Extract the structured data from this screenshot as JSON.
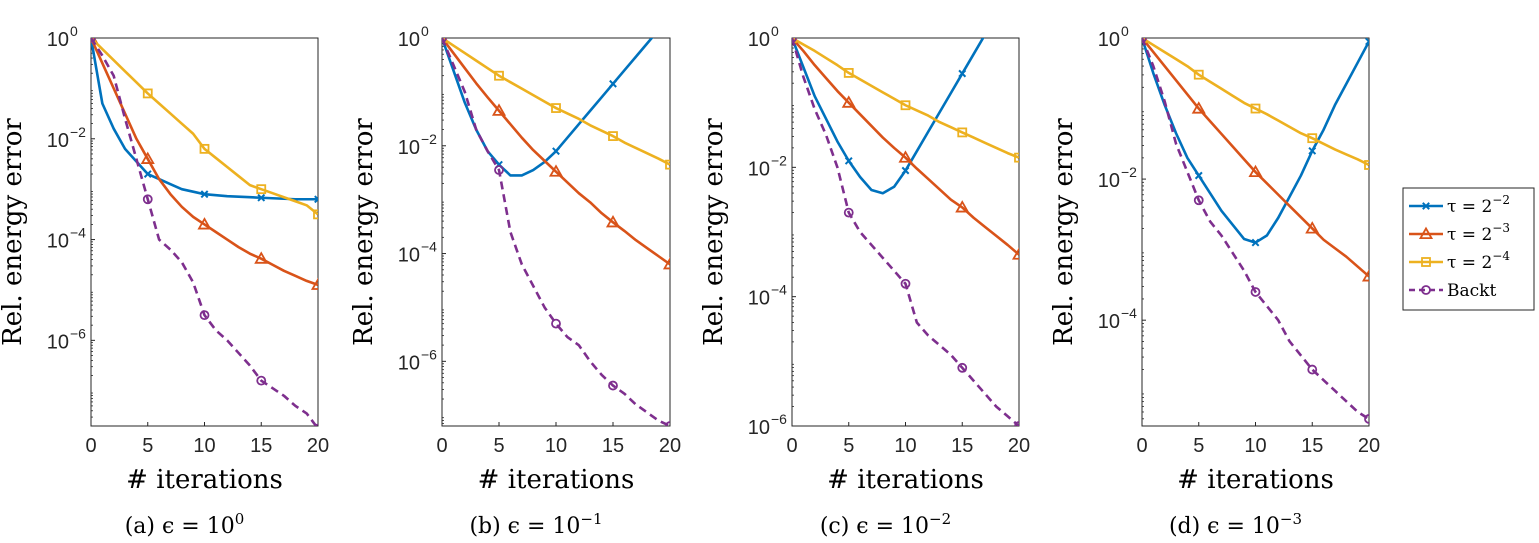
{
  "colors": {
    "tau_2m2": "#0072BD",
    "tau_2m3": "#D95319",
    "tau_2m4": "#EDB120",
    "backt": "#7E2F8E",
    "axis": "#262626"
  },
  "legend": {
    "entries": [
      {
        "label_prefix": "τ = 2",
        "label_exp": "−2",
        "marker": "x",
        "dash": false
      },
      {
        "label_prefix": "τ = 2",
        "label_exp": "−3",
        "marker": "triangle",
        "dash": false
      },
      {
        "label_prefix": "τ = 2",
        "label_exp": "−4",
        "marker": "square",
        "dash": false
      },
      {
        "label_prefix": "",
        "label_exp": "",
        "label": "Backt",
        "marker": "circle",
        "dash": true
      }
    ]
  },
  "chart_data": [
    {
      "type": "line",
      "caption_prefix": "(a) ϵ = 10",
      "caption_exp": "0",
      "xlabel": "# iterations",
      "ylabel": "Rel. energy error",
      "yscale": "log",
      "xlim": [
        0,
        20
      ],
      "ylim_log10": [
        -7.7,
        0
      ],
      "xticks": [
        0,
        5,
        10,
        15,
        20
      ],
      "yticks": [
        {
          "base": "10",
          "exp": "0",
          "value": 0
        },
        {
          "base": "10",
          "exp": "-2",
          "value": -2
        },
        {
          "base": "10",
          "exp": "-4",
          "value": -4
        },
        {
          "base": "10",
          "exp": "-6",
          "value": -6
        }
      ],
      "series": [
        {
          "key": "tau_2m2",
          "log10_y": [
            0,
            -1.3,
            -1.8,
            -2.2,
            -2.45,
            -2.7,
            -2.8,
            -2.9,
            -3.0,
            -3.05,
            -3.1,
            -3.12,
            -3.14,
            -3.15,
            -3.16,
            -3.17,
            -3.18,
            -3.19,
            -3.2,
            -3.2,
            -3.2
          ]
        },
        {
          "key": "tau_2m3",
          "log10_y": [
            0,
            -0.5,
            -1.0,
            -1.5,
            -2.0,
            -2.4,
            -2.8,
            -3.1,
            -3.35,
            -3.55,
            -3.7,
            -3.85,
            -4.0,
            -4.15,
            -4.28,
            -4.38,
            -4.5,
            -4.62,
            -4.72,
            -4.82,
            -4.9
          ]
        },
        {
          "key": "tau_2m4",
          "log10_y": [
            0,
            -0.22,
            -0.44,
            -0.66,
            -0.88,
            -1.1,
            -1.3,
            -1.5,
            -1.7,
            -1.9,
            -2.2,
            -2.38,
            -2.56,
            -2.74,
            -2.92,
            -3.0,
            -3.08,
            -3.16,
            -3.24,
            -3.32,
            -3.5
          ]
        },
        {
          "key": "backt",
          "log10_y": [
            0,
            -0.35,
            -0.75,
            -1.6,
            -2.4,
            -3.2,
            -4.0,
            -4.2,
            -4.45,
            -4.85,
            -5.5,
            -5.8,
            -6.0,
            -6.25,
            -6.5,
            -6.8,
            -6.95,
            -7.1,
            -7.3,
            -7.45,
            -7.75
          ]
        }
      ],
      "markers_at": [
        0,
        5,
        10,
        15,
        20
      ]
    },
    {
      "type": "line",
      "caption_prefix": "(b) ϵ = 10",
      "caption_exp": "−1",
      "xlabel": "# iterations",
      "ylabel": "Rel. energy error",
      "yscale": "log",
      "xlim": [
        0,
        20
      ],
      "ylim_log10": [
        -7.2,
        0
      ],
      "xticks": [
        0,
        5,
        10,
        15,
        20
      ],
      "yticks": [
        {
          "base": "10",
          "exp": "0",
          "value": 0
        },
        {
          "base": "10",
          "exp": "-2",
          "value": -2
        },
        {
          "base": "10",
          "exp": "-4",
          "value": -4
        },
        {
          "base": "10",
          "exp": "-6",
          "value": -6
        }
      ],
      "series": [
        {
          "key": "tau_2m2",
          "log10_y": [
            0,
            -0.6,
            -1.2,
            -1.7,
            -2.1,
            -2.35,
            -2.55,
            -2.55,
            -2.45,
            -2.3,
            -2.1,
            -1.85,
            -1.6,
            -1.35,
            -1.1,
            -0.85,
            -0.6,
            -0.35,
            -0.1,
            0.15,
            0.4
          ]
        },
        {
          "key": "tau_2m3",
          "log10_y": [
            0,
            -0.28,
            -0.56,
            -0.84,
            -1.1,
            -1.35,
            -1.6,
            -1.85,
            -2.08,
            -2.28,
            -2.48,
            -2.68,
            -2.88,
            -3.05,
            -3.25,
            -3.42,
            -3.58,
            -3.75,
            -3.9,
            -4.05,
            -4.2
          ]
        },
        {
          "key": "tau_2m4",
          "log10_y": [
            0,
            -0.14,
            -0.28,
            -0.42,
            -0.56,
            -0.7,
            -0.82,
            -0.94,
            -1.06,
            -1.18,
            -1.3,
            -1.4,
            -1.5,
            -1.62,
            -1.72,
            -1.82,
            -1.94,
            -2.04,
            -2.14,
            -2.24,
            -2.35
          ]
        },
        {
          "key": "backt",
          "log10_y": [
            0,
            -0.5,
            -1.0,
            -1.7,
            -2.1,
            -2.45,
            -3.6,
            -4.2,
            -4.6,
            -5.0,
            -5.3,
            -5.55,
            -5.7,
            -6.0,
            -6.25,
            -6.45,
            -6.6,
            -6.8,
            -6.95,
            -7.1,
            -7.2
          ]
        }
      ],
      "markers_at": [
        0,
        5,
        10,
        15,
        20
      ]
    },
    {
      "type": "line",
      "caption_prefix": "(c) ϵ = 10",
      "caption_exp": "−2",
      "xlabel": "# iterations",
      "ylabel": "Rel. energy error",
      "yscale": "log",
      "xlim": [
        0,
        20
      ],
      "ylim_log10": [
        -6,
        0
      ],
      "xticks": [
        0,
        5,
        10,
        15,
        20
      ],
      "yticks": [
        {
          "base": "10",
          "exp": "0",
          "value": 0
        },
        {
          "base": "10",
          "exp": "-2",
          "value": -2
        },
        {
          "base": "10",
          "exp": "-4",
          "value": -4
        },
        {
          "base": "10",
          "exp": "-6",
          "value": -6
        }
      ],
      "series": [
        {
          "key": "tau_2m2",
          "log10_y": [
            0,
            -0.45,
            -0.9,
            -1.25,
            -1.6,
            -1.9,
            -2.15,
            -2.35,
            -2.4,
            -2.3,
            -2.05,
            -1.75,
            -1.45,
            -1.15,
            -0.85,
            -0.55,
            -0.25,
            0.05,
            0.35,
            0.65,
            0.95
          ]
        },
        {
          "key": "tau_2m3",
          "log10_y": [
            0,
            -0.2,
            -0.42,
            -0.62,
            -0.82,
            -1.0,
            -1.18,
            -1.36,
            -1.54,
            -1.7,
            -1.85,
            -2.02,
            -2.18,
            -2.34,
            -2.5,
            -2.62,
            -2.78,
            -2.92,
            -3.06,
            -3.2,
            -3.35
          ]
        },
        {
          "key": "tau_2m4",
          "log10_y": [
            0,
            -0.1,
            -0.2,
            -0.31,
            -0.42,
            -0.54,
            -0.64,
            -0.74,
            -0.84,
            -0.94,
            -1.04,
            -1.12,
            -1.2,
            -1.3,
            -1.38,
            -1.46,
            -1.54,
            -1.62,
            -1.7,
            -1.78,
            -1.85
          ]
        },
        {
          "key": "backt",
          "log10_y": [
            0,
            -0.6,
            -1.1,
            -1.5,
            -2.0,
            -2.7,
            -3.0,
            -3.2,
            -3.4,
            -3.6,
            -3.8,
            -4.4,
            -4.6,
            -4.75,
            -4.9,
            -5.1,
            -5.3,
            -5.5,
            -5.7,
            -5.85,
            -6.0
          ]
        }
      ],
      "markers_at": [
        0,
        5,
        10,
        15,
        20
      ]
    },
    {
      "type": "line",
      "caption_prefix": "(d) ϵ = 10",
      "caption_exp": "−3",
      "xlabel": "# iterations",
      "ylabel": "Rel. energy error",
      "yscale": "log",
      "xlim": [
        0,
        20
      ],
      "ylim_log10": [
        -5.5,
        0
      ],
      "xticks": [
        0,
        5,
        10,
        15,
        20
      ],
      "yticks": [
        {
          "base": "10",
          "exp": "0",
          "value": 0
        },
        {
          "base": "10",
          "exp": "-2",
          "value": -2
        },
        {
          "base": "10",
          "exp": "-4",
          "value": -4
        }
      ],
      "series": [
        {
          "key": "tau_2m2",
          "log10_y": [
            0,
            -0.5,
            -0.95,
            -1.35,
            -1.7,
            -1.95,
            -2.2,
            -2.45,
            -2.65,
            -2.85,
            -2.9,
            -2.8,
            -2.55,
            -2.25,
            -1.95,
            -1.6,
            -1.3,
            -0.95,
            -0.65,
            -0.35,
            -0.05
          ]
        },
        {
          "key": "tau_2m3",
          "log10_y": [
            0,
            -0.2,
            -0.4,
            -0.6,
            -0.8,
            -1.0,
            -1.18,
            -1.36,
            -1.54,
            -1.72,
            -1.9,
            -2.06,
            -2.22,
            -2.38,
            -2.54,
            -2.7,
            -2.86,
            -2.98,
            -3.1,
            -3.24,
            -3.38
          ]
        },
        {
          "key": "tau_2m4",
          "log10_y": [
            0,
            -0.1,
            -0.2,
            -0.3,
            -0.4,
            -0.52,
            -0.62,
            -0.72,
            -0.82,
            -0.92,
            -1.0,
            -1.08,
            -1.17,
            -1.26,
            -1.35,
            -1.42,
            -1.5,
            -1.58,
            -1.65,
            -1.72,
            -1.8
          ]
        },
        {
          "key": "backt",
          "log10_y": [
            0,
            -0.4,
            -0.9,
            -1.5,
            -1.9,
            -2.3,
            -2.6,
            -2.8,
            -3.05,
            -3.3,
            -3.6,
            -3.8,
            -4.0,
            -4.3,
            -4.5,
            -4.7,
            -4.85,
            -5.0,
            -5.15,
            -5.3,
            -5.4
          ]
        }
      ],
      "markers_at": [
        0,
        5,
        10,
        15,
        20
      ]
    }
  ]
}
